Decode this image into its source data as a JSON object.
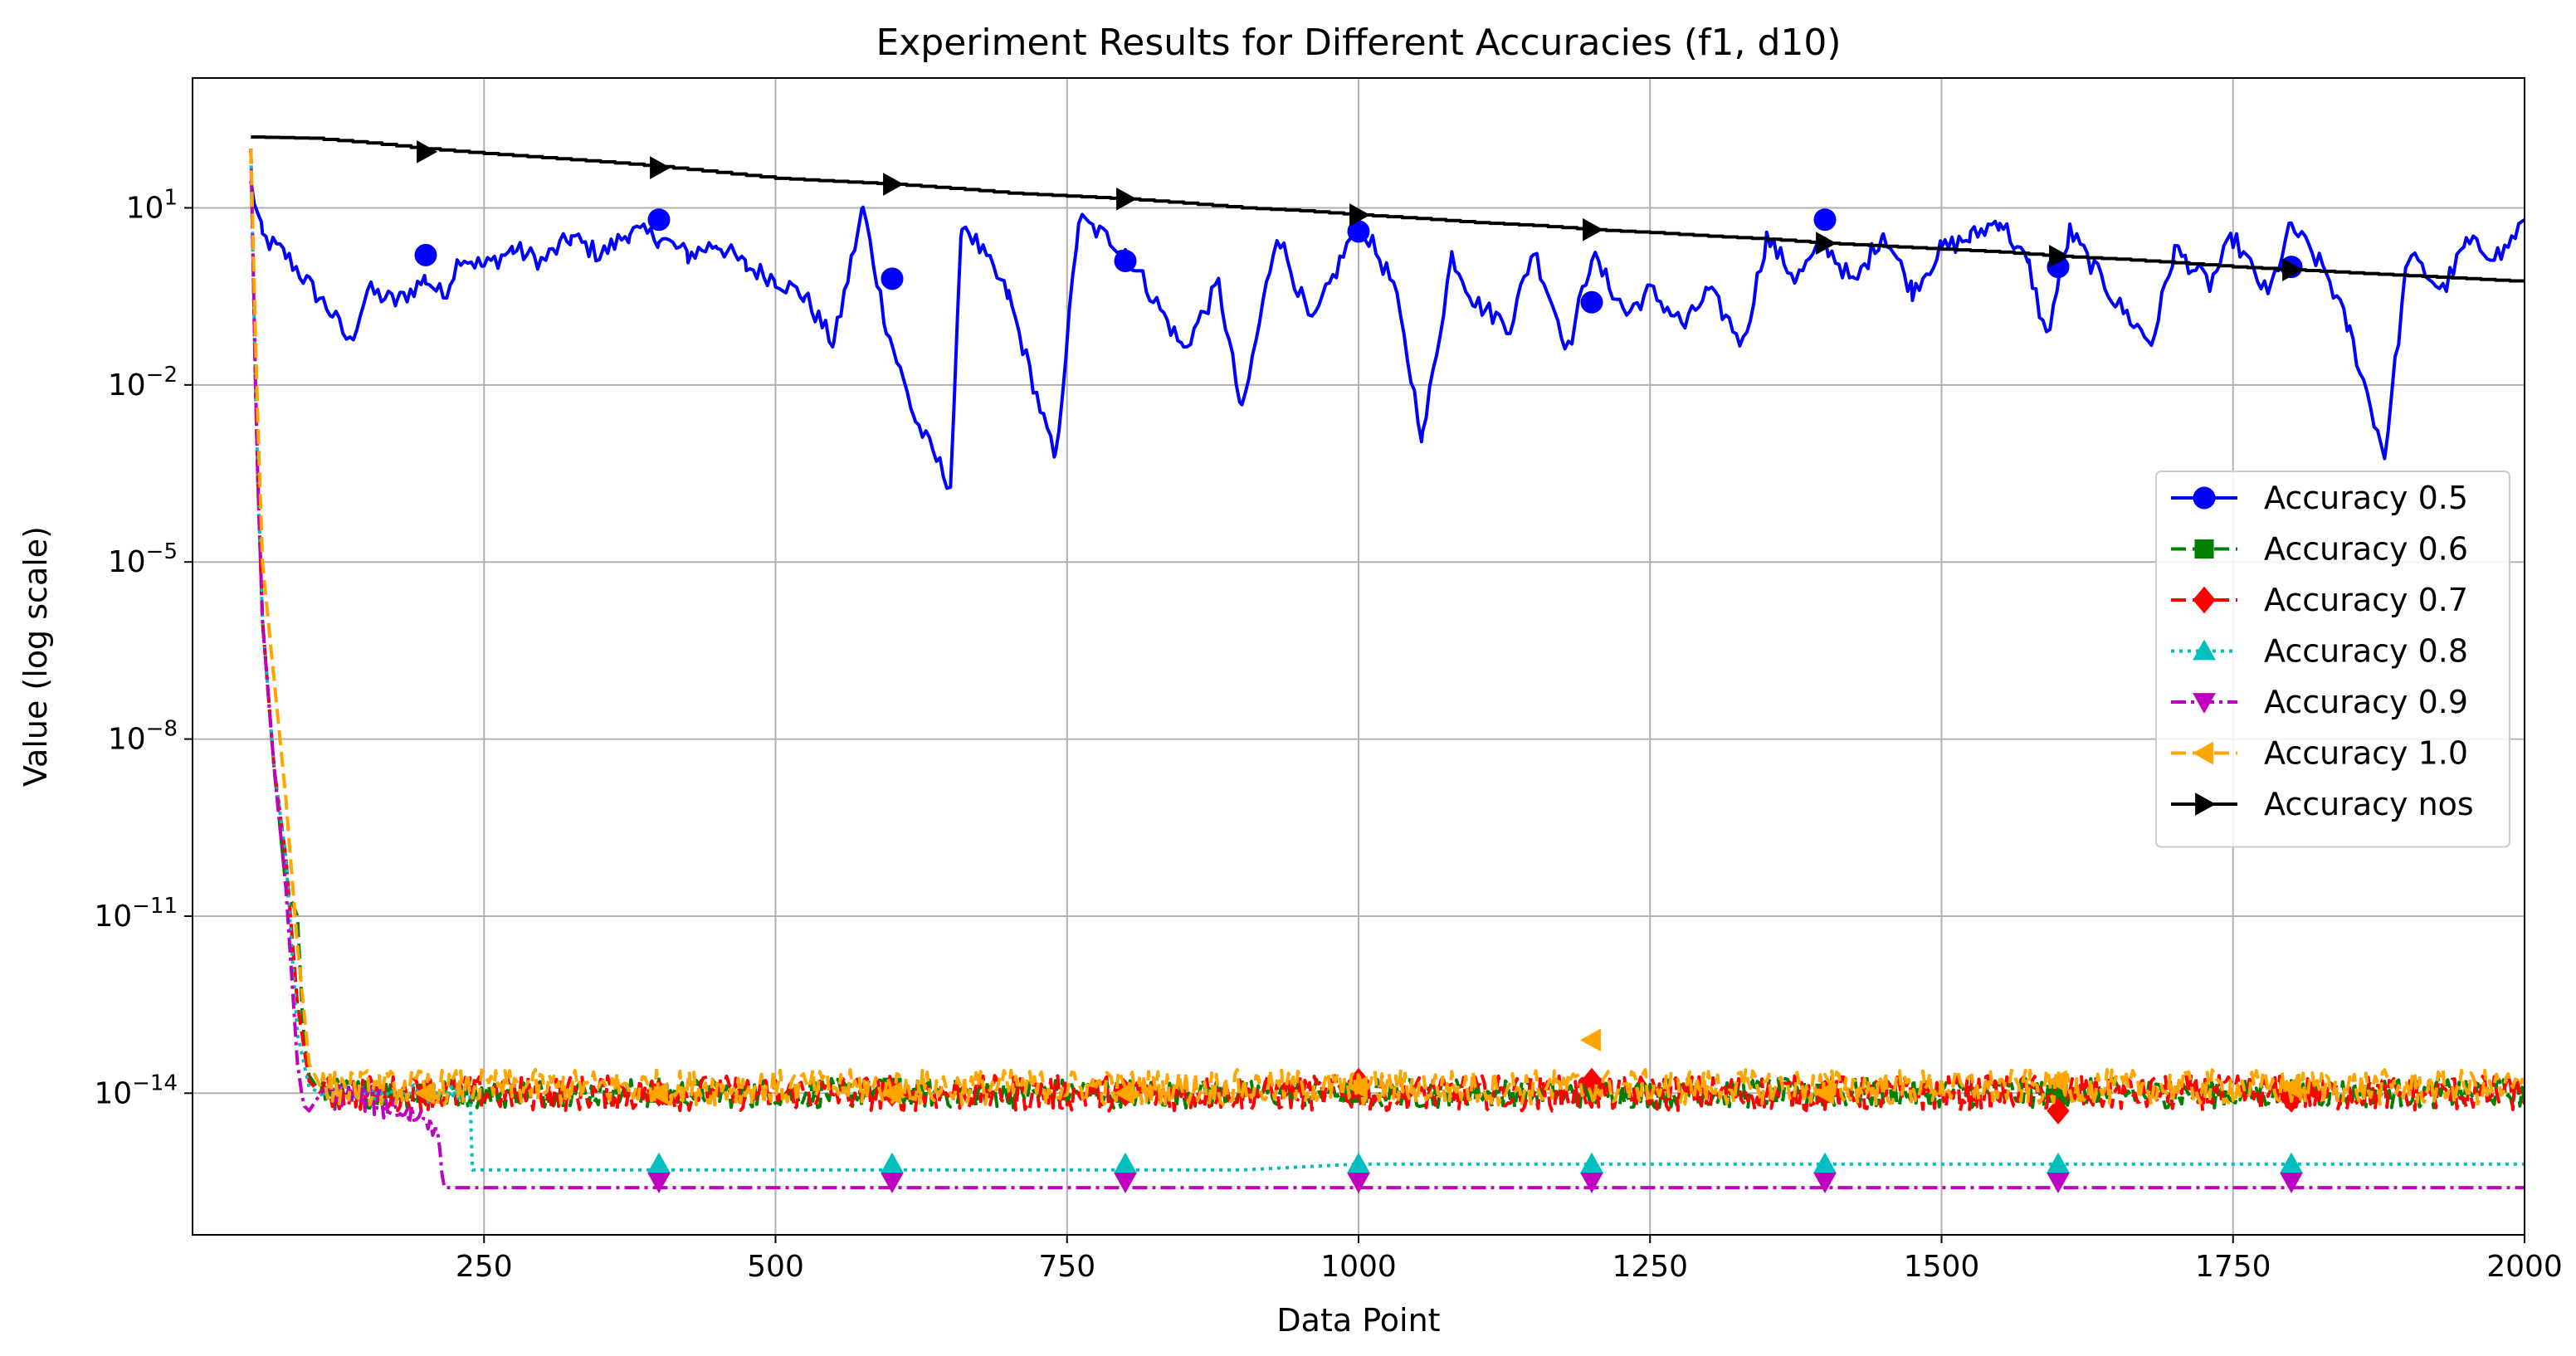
{
  "chart_data": {
    "type": "line",
    "title": "Experiment Results for Different Accuracies (f1, d10)",
    "xlabel": "Data Point",
    "ylabel": "Value (log scale)",
    "xlim": [
      0,
      2000
    ],
    "ylim_log10": [
      -16.4,
      3.2
    ],
    "yscale": "log",
    "grid": true,
    "legend_position": "center-right",
    "x_ticks": [
      250,
      500,
      750,
      1000,
      1250,
      1500,
      1750,
      2000
    ],
    "y_ticks": [
      {
        "exp": 1,
        "base": "10",
        "power": "1"
      },
      {
        "exp": -2,
        "base": "10",
        "power": "−2"
      },
      {
        "exp": -5,
        "base": "10",
        "power": "−5"
      },
      {
        "exp": -8,
        "base": "10",
        "power": "−8"
      },
      {
        "exp": -11,
        "base": "10",
        "power": "−11"
      },
      {
        "exp": -14,
        "base": "10",
        "power": "−14"
      }
    ],
    "series": [
      {
        "name": "Accuracy 0.5",
        "color": "#0000ff",
        "dash": "solid",
        "marker": "circle",
        "x": [
          50,
          60,
          80,
          100,
          120,
          135,
          150,
          175,
          200,
          215,
          230,
          250,
          275,
          300,
          325,
          350,
          375,
          400,
          425,
          450,
          475,
          500,
          525,
          550,
          575,
          595,
          620,
          650,
          660,
          700,
          740,
          760,
          800,
          850,
          880,
          900,
          930,
          960,
          1000,
          1030,
          1055,
          1080,
          1100,
          1130,
          1150,
          1180,
          1200,
          1230,
          1250,
          1280,
          1300,
          1330,
          1350,
          1375,
          1400,
          1425,
          1450,
          1475,
          1500,
          1525,
          1550,
          1575,
          1590,
          1610,
          1650,
          1680,
          1700,
          1730,
          1750,
          1780,
          1800,
          1830,
          1850,
          1880,
          1900,
          1930,
          1950,
          1980,
          2000
        ],
        "y_log10": [
          1.4,
          0.5,
          0.2,
          -0.3,
          -0.8,
          -1.3,
          -0.4,
          -0.6,
          -0.2,
          -0.5,
          0.2,
          0.0,
          0.3,
          0.1,
          0.5,
          0.2,
          0.6,
          0.5,
          0.2,
          0.4,
          0.0,
          -0.2,
          -0.5,
          -1.3,
          1.0,
          -1.0,
          -2.6,
          -3.7,
          0.8,
          -0.5,
          -3.3,
          0.8,
          0.3,
          -1.4,
          -0.3,
          -2.5,
          0.6,
          -1.0,
          0.8,
          -0.3,
          -2.9,
          0.2,
          -0.6,
          -1.0,
          0.3,
          -1.4,
          0.2,
          -0.8,
          -0.4,
          -1.0,
          -0.4,
          -1.3,
          0.5,
          -0.2,
          0.4,
          -0.3,
          0.6,
          -0.4,
          0.3,
          0.5,
          0.8,
          0.0,
          -1.2,
          0.6,
          -0.6,
          -1.3,
          0.3,
          -0.3,
          0.5,
          -0.5,
          0.7,
          -0.1,
          -1.1,
          -3.2,
          0.2,
          -0.4,
          0.4,
          0.2,
          0.8
        ],
        "marker_x": [
          200,
          400,
          600,
          800,
          1000,
          1200,
          1400,
          1600,
          1800
        ],
        "marker_y_log10": [
          0.2,
          0.8,
          -0.2,
          0.1,
          0.6,
          -0.6,
          0.8,
          0.0,
          0.0
        ]
      },
      {
        "name": "Accuracy 0.6",
        "color": "#008000",
        "dash": "dashed",
        "marker": "square",
        "x": [
          50,
          55,
          60,
          70,
          80,
          90,
          95,
          100,
          110,
          2000
        ],
        "y_log10": [
          2.0,
          -3.0,
          -6.0,
          -8.5,
          -10.5,
          -11.0,
          -13.0,
          -13.7,
          -14.0,
          -14.0
        ],
        "noise": 0.25,
        "marker_x": [
          200,
          400,
          600,
          800,
          1000,
          1200,
          1400,
          1600,
          1800
        ],
        "marker_y_log10": [
          -14.0,
          -14.0,
          -13.9,
          -14.0,
          -14.0,
          -13.9,
          -14.0,
          -14.0,
          -14.0
        ]
      },
      {
        "name": "Accuracy 0.7",
        "color": "#ff0000",
        "dash": "dashed",
        "marker": "diamond",
        "x": [
          50,
          55,
          60,
          70,
          80,
          90,
          100,
          110,
          2000
        ],
        "y_log10": [
          2.0,
          -3.0,
          -6.0,
          -8.5,
          -10.0,
          -12.5,
          -13.8,
          -14.0,
          -14.0
        ],
        "noise": 0.3,
        "marker_x": [
          200,
          400,
          600,
          800,
          1000,
          1200,
          1400,
          1600,
          1800
        ],
        "marker_y_log10": [
          -14.0,
          -14.0,
          -14.0,
          -14.0,
          -13.8,
          -13.8,
          -14.0,
          -14.3,
          -14.1
        ]
      },
      {
        "name": "Accuracy 0.8",
        "color": "#00bfbf",
        "dash": "dotted",
        "marker": "triangle-up",
        "x": [
          50,
          55,
          60,
          70,
          80,
          90,
          100,
          110,
          238,
          240,
          900,
          1000,
          2000
        ],
        "y_log10": [
          2.0,
          -3.0,
          -6.0,
          -8.5,
          -10.0,
          -13.0,
          -13.9,
          -14.0,
          -14.0,
          -15.3,
          -15.3,
          -15.2,
          -15.2
        ],
        "noise_until": 238,
        "noise": 0.15,
        "marker_x": [
          400,
          600,
          800,
          1000,
          1200,
          1400,
          1600,
          1800
        ],
        "marker_y_log10": [
          -15.2,
          -15.2,
          -15.2,
          -15.2,
          -15.2,
          -15.2,
          -15.2,
          -15.2
        ]
      },
      {
        "name": "Accuracy 0.9",
        "color": "#bf00bf",
        "dash": "dashdot",
        "marker": "triangle-down",
        "x": [
          50,
          55,
          60,
          70,
          80,
          90,
          95,
          100,
          110,
          150,
          210,
          215,
          2000
        ],
        "y_log10": [
          2.0,
          -3.0,
          -6.0,
          -8.5,
          -10.5,
          -13.5,
          -14.2,
          -14.3,
          -14.0,
          -14.1,
          -14.5,
          -15.6,
          -15.6
        ],
        "noise_until": 212,
        "noise": 0.25,
        "marker_x": [
          400,
          600,
          800,
          1000,
          1200,
          1400,
          1600,
          1800
        ],
        "marker_y_log10": [
          -15.5,
          -15.5,
          -15.5,
          -15.5,
          -15.5,
          -15.5,
          -15.5,
          -15.5
        ]
      },
      {
        "name": "Accuracy 1.0",
        "color": "#ffa500",
        "dash": "dashed",
        "marker": "triangle-left",
        "x": [
          50,
          55,
          60,
          70,
          80,
          90,
          100,
          110,
          2000
        ],
        "y_log10": [
          2.0,
          -2.0,
          -5.0,
          -7.0,
          -9.0,
          -11.5,
          -13.5,
          -13.9,
          -13.9
        ],
        "noise": 0.3,
        "marker_x": [
          200,
          400,
          600,
          800,
          1000,
          1200,
          1400,
          1600,
          1800
        ],
        "marker_y_log10": [
          -14.0,
          -14.0,
          -14.0,
          -14.0,
          -13.9,
          -13.1,
          -14.0,
          -13.8,
          -13.9
        ]
      },
      {
        "name": "Accuracy nos",
        "color": "#000000",
        "dash": "solid",
        "marker": "triangle-right",
        "x": [
          50,
          100,
          150,
          200,
          250,
          300,
          350,
          400,
          450,
          500,
          550,
          600,
          650,
          700,
          750,
          800,
          850,
          900,
          950,
          1000,
          1050,
          1100,
          1150,
          1200,
          1250,
          1300,
          1350,
          1400,
          1450,
          1500,
          1550,
          1600,
          1650,
          1700,
          1750,
          1800,
          1850,
          1900,
          1950,
          2000
        ],
        "y_log10": [
          2.2,
          2.18,
          2.1,
          2.0,
          1.92,
          1.85,
          1.78,
          1.7,
          1.6,
          1.5,
          1.45,
          1.4,
          1.33,
          1.25,
          1.2,
          1.15,
          1.08,
          1.0,
          0.95,
          0.88,
          0.82,
          0.75,
          0.7,
          0.63,
          0.58,
          0.52,
          0.47,
          0.4,
          0.35,
          0.3,
          0.25,
          0.18,
          0.13,
          0.07,
          0.0,
          -0.05,
          -0.1,
          -0.15,
          -0.2,
          -0.25
        ],
        "stepped": true,
        "marker_x": [
          200,
          400,
          600,
          800,
          1000,
          1200,
          1400,
          1600,
          1800
        ],
        "marker_y_log10": [
          1.95,
          1.68,
          1.4,
          1.15,
          0.88,
          0.63,
          0.4,
          0.18,
          -0.05
        ]
      }
    ]
  }
}
